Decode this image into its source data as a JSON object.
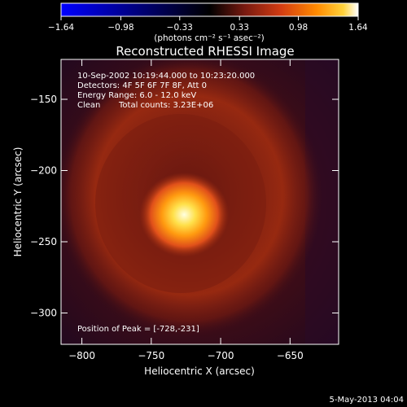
{
  "chart_data": {
    "type": "heatmap",
    "title": "Reconstructed RHESSI Image",
    "colorbar": {
      "min": -1.64,
      "max": 1.64,
      "ticks": [
        "-1.64",
        "-0.98",
        "-0.33",
        "0.33",
        "0.98",
        "1.64"
      ],
      "unit_label": "(photons cm⁻² s⁻¹ asec⁻²)",
      "colormap": [
        "#0000ff",
        "#000000",
        "#7a1a10",
        "#d23c12",
        "#ff8a00",
        "#ffd23a",
        "#ffffff"
      ]
    },
    "xlabel": "Heliocentric X (arcsec)",
    "ylabel": "Heliocentric Y (arcsec)",
    "xlim": [
      -815,
      -615
    ],
    "ylim": [
      -322,
      -122
    ],
    "xticks": [
      -800,
      -750,
      -700,
      -650
    ],
    "xtick_labels": [
      "−800",
      "−750",
      "−700",
      "−650"
    ],
    "yticks": [
      -150,
      -200,
      -250,
      -300
    ],
    "ytick_labels": [
      "−150",
      "−200",
      "−250",
      "−300"
    ],
    "annotations": [
      "10-Sep-2002 10:19:44.000 to 10:23:20.000",
      "Detectors: 4F 5F 6F 7F 8F, Att 0",
      "Energy Range: 6.0 - 12.0 keV",
      "Clean",
      "Total counts: 3.23E+06",
      "Position of Peak = [-728,-231]"
    ],
    "peak": {
      "x": -728,
      "y": -231
    },
    "footer_date": "5-May-2013 04:04"
  }
}
